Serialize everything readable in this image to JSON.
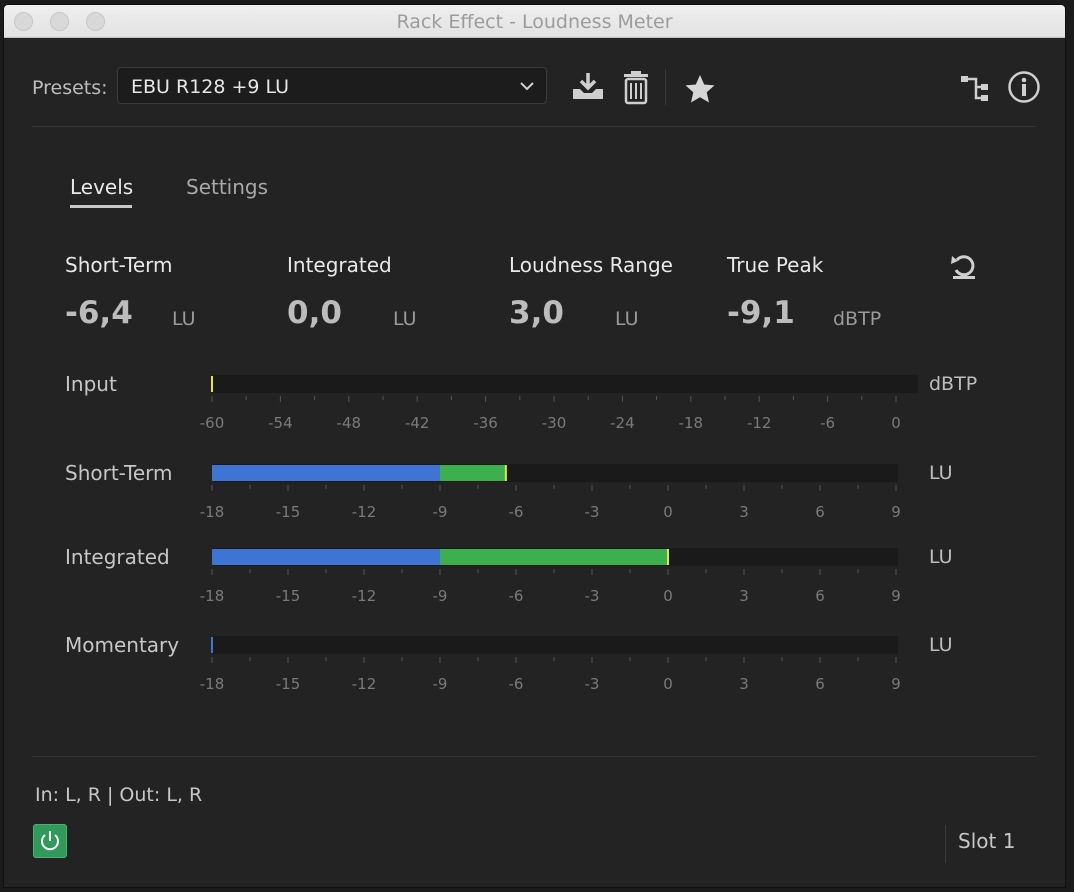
{
  "window": {
    "title": "Rack Effect - Loudness Meter"
  },
  "presets": {
    "label": "Presets:",
    "selected": "EBU R128 +9 LU"
  },
  "toolbar_icons": [
    "save-preset-icon",
    "delete-preset-icon",
    "favorite-star-icon",
    "routing-icon",
    "info-icon"
  ],
  "tabs": [
    {
      "label": "Levels",
      "active": true
    },
    {
      "label": "Settings",
      "active": false
    }
  ],
  "stats": [
    {
      "label": "Short-Term",
      "value": "-6,4",
      "unit": "LU"
    },
    {
      "label": "Integrated",
      "value": "0,0",
      "unit": "LU"
    },
    {
      "label": "Loudness Range",
      "value": "3,0",
      "unit": "LU"
    },
    {
      "label": "True Peak",
      "value": "-9,1",
      "unit": "dBTP"
    }
  ],
  "meters": [
    {
      "label": "Input",
      "unit": "dBTP",
      "scale": [
        "-60",
        "-54",
        "-48",
        "-42",
        "-36",
        "-30",
        "-24",
        "-18",
        "-12",
        "-6",
        "0"
      ],
      "min": -60,
      "max": 3,
      "level": -60,
      "segments": []
    },
    {
      "label": "Short-Term",
      "unit": "LU",
      "scale": [
        "-18",
        "-15",
        "-12",
        "-9",
        "-6",
        "-3",
        "0",
        "3",
        "6",
        "9"
      ],
      "min": -18,
      "max": 9,
      "level": -6.4,
      "segments": [
        {
          "from": -18,
          "to": -9,
          "color": "#3e74d4"
        },
        {
          "from": -9,
          "to": -6.4,
          "color": "#3cb04c"
        }
      ]
    },
    {
      "label": "Integrated",
      "unit": "LU",
      "scale": [
        "-18",
        "-15",
        "-12",
        "-9",
        "-6",
        "-3",
        "0",
        "3",
        "6",
        "9"
      ],
      "min": -18,
      "max": 9,
      "level": 0,
      "segments": [
        {
          "from": -18,
          "to": -9,
          "color": "#3e74d4"
        },
        {
          "from": -9,
          "to": 0,
          "color": "#3cb04c"
        }
      ]
    },
    {
      "label": "Momentary",
      "unit": "LU",
      "scale": [
        "-18",
        "-15",
        "-12",
        "-9",
        "-6",
        "-3",
        "0",
        "3",
        "6",
        "9"
      ],
      "min": -18,
      "max": 9,
      "level": -18,
      "segments": []
    }
  ],
  "colors": {
    "accent_power": "#2f9a5a",
    "peak_marker": "#e8e24a",
    "blue": "#3e74d4",
    "green": "#3cb04c"
  },
  "footer": {
    "io": "In: L, R | Out: L, R",
    "slot": "Slot 1"
  }
}
